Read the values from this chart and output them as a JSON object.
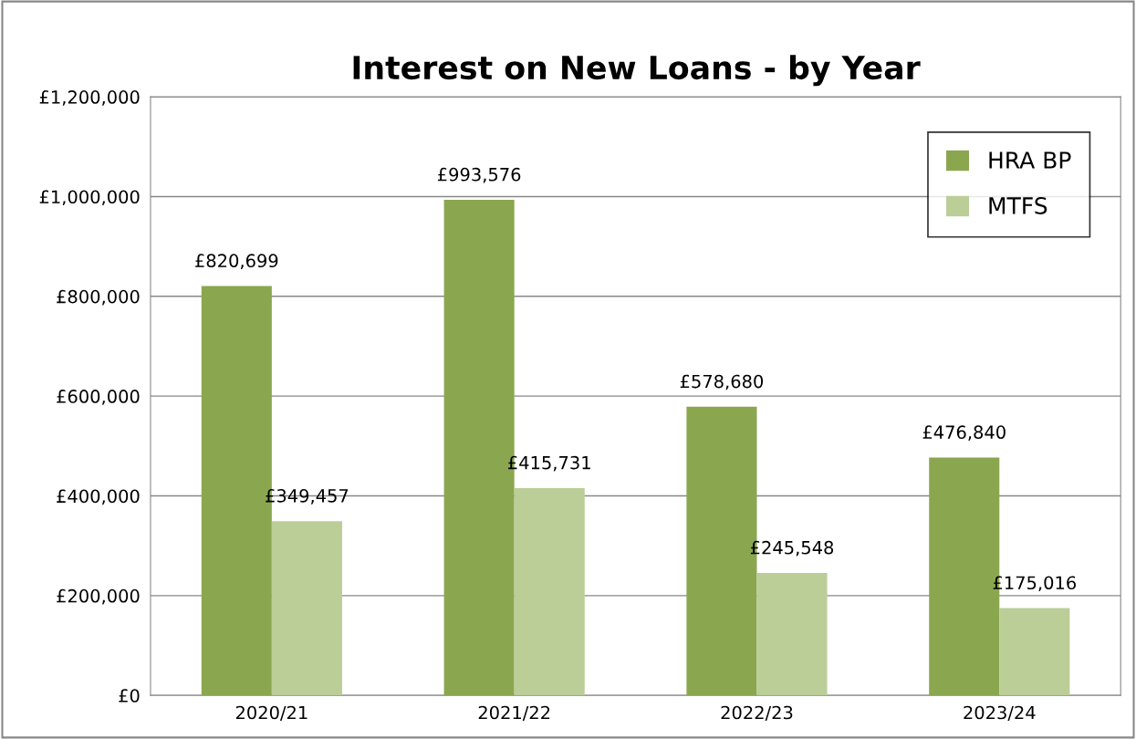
{
  "chart_data": {
    "type": "bar",
    "title": "Interest on New Loans - by Year",
    "categories": [
      "2020/21",
      "2021/22",
      "2022/23",
      "2023/24"
    ],
    "series": [
      {
        "name": "HRA BP",
        "color": "#8aa74f",
        "values": [
          820699,
          993576,
          578680,
          476840
        ],
        "value_labels": [
          "£820,699",
          "£993,576",
          "£578,680",
          "£476,840"
        ]
      },
      {
        "name": "MTFS",
        "color": "#bbce97",
        "values": [
          349457,
          415731,
          245548,
          175016
        ],
        "value_labels": [
          "£349,457",
          "£415,731",
          "£245,548",
          "£175,016"
        ]
      }
    ],
    "ylim": [
      0,
      1200000
    ],
    "yticks": [
      {
        "value": 0,
        "label": "£0"
      },
      {
        "value": 200000,
        "label": "£200,000"
      },
      {
        "value": 400000,
        "label": "£400,000"
      },
      {
        "value": 600000,
        "label": "£600,000"
      },
      {
        "value": 800000,
        "label": "£800,000"
      },
      {
        "value": 1000000,
        "label": "£1,000,000"
      },
      {
        "value": 1200000,
        "label": "£1,200,000"
      }
    ],
    "grid": "y",
    "legend": "top right"
  }
}
